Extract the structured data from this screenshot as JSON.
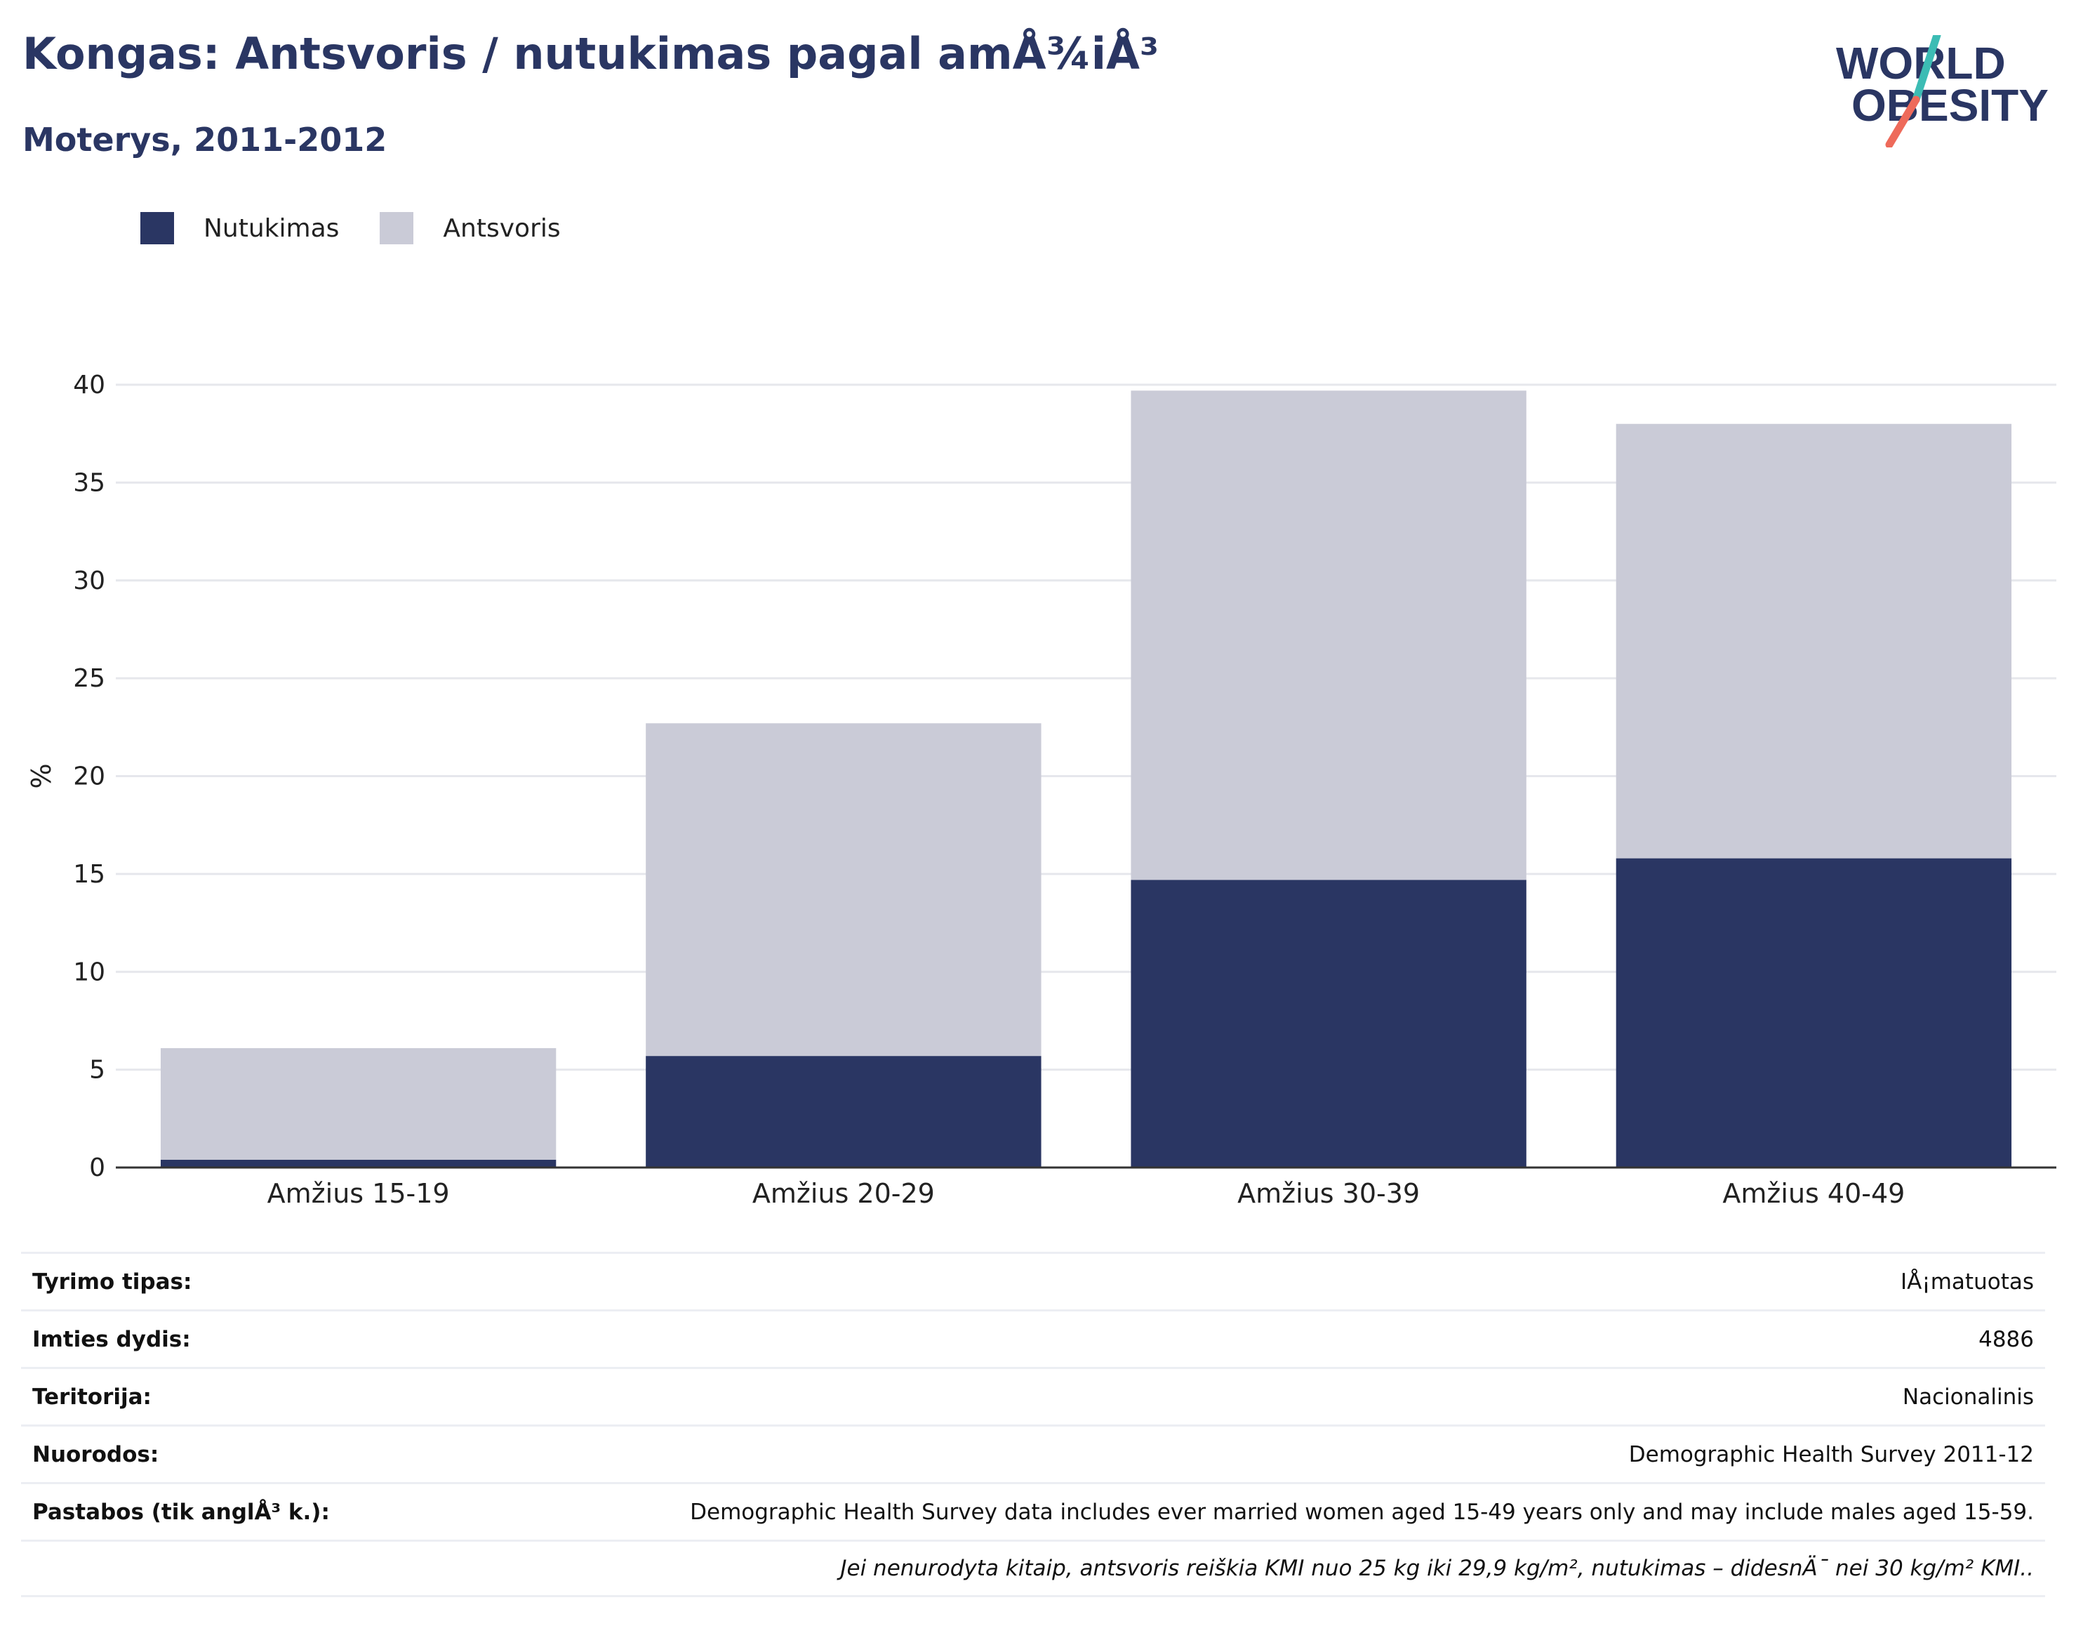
{
  "header": {
    "title": "Kongas: Antsvoris / nutukimas pagal amÅ¾iÅ³",
    "subtitle": "Moterys, 2011-2012"
  },
  "logo": {
    "line1": "WORLD",
    "line2": "OBESITY"
  },
  "legend": {
    "items": [
      {
        "label": "Nutukimas",
        "color": "#2a3663"
      },
      {
        "label": "Antsvoris",
        "color": "#cacbd7"
      }
    ]
  },
  "chart_data": {
    "type": "bar",
    "stacked": true,
    "categories": [
      "Amžius 15-19",
      "Amžius 20-29",
      "Amžius 30-39",
      "Amžius 40-49"
    ],
    "series": [
      {
        "name": "Nutukimas",
        "color": "#2a3663",
        "values": [
          0.4,
          5.7,
          14.7,
          15.8
        ]
      },
      {
        "name": "Antsvoris",
        "color": "#cacbd7",
        "values": [
          5.7,
          17.0,
          25.0,
          22.2
        ]
      }
    ],
    "ylabel": "%",
    "xlabel": "",
    "ylim": [
      0,
      40
    ],
    "yticks": [
      0,
      5,
      10,
      15,
      20,
      25,
      30,
      35,
      40
    ],
    "grid": true
  },
  "info": {
    "rows": [
      {
        "key": "Tyrimo tipas:",
        "value": "IÅ¡matuotas"
      },
      {
        "key": "Imties dydis:",
        "value": "4886"
      },
      {
        "key": "Teritorija:",
        "value": "Nacionalinis"
      },
      {
        "key": "Nuorodos:",
        "value": "Demographic Health Survey 2011-12"
      },
      {
        "key": "Pastabos (tik anglÅ³ k.):",
        "value": "Demographic Health Survey data includes ever married women aged 15-49 years only and may include males aged 15-59."
      }
    ],
    "note": "Jei nenurodyta kitaip, antsvoris reiškia KMI nuo 25 kg iki 29,9 kg/m², nutukimas – didesnÄ¯ nei 30 kg/m² KMI.."
  }
}
